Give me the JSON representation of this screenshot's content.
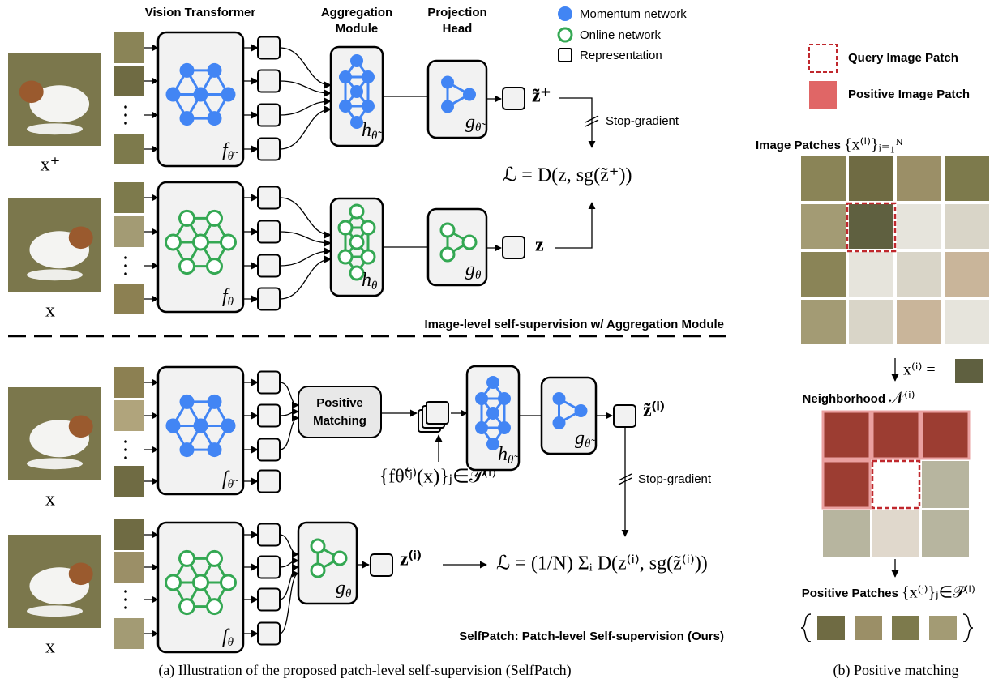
{
  "legend": {
    "momentum": "Momentum network",
    "online": "Online network",
    "representation": "Representation"
  },
  "modules": {
    "encoder": "Vision Transformer",
    "aggregation": [
      "Aggregation",
      "Module"
    ],
    "projection": [
      "Projection",
      "Head"
    ]
  },
  "rows": [
    {
      "input": "x⁺",
      "encoder": {
        "base": "f",
        "sub": "θ̃"
      },
      "aggregator": {
        "base": "h",
        "sub": "θ̃"
      },
      "head": {
        "base": "g",
        "sub": "θ̃"
      },
      "output": "z̃⁺"
    },
    {
      "input": "x",
      "encoder": {
        "base": "f",
        "sub": "θ"
      },
      "aggregator": {
        "base": "h",
        "sub": "θ"
      },
      "head": {
        "base": "g",
        "sub": "θ"
      },
      "output": "z"
    },
    {
      "input": "x",
      "encoder": {
        "base": "f",
        "sub": "θ̃"
      },
      "matching": [
        "Positive",
        "Matching"
      ],
      "features": "{fθ̃⁽ʲ⁾(x)}ⱼ∈𝒫⁽ⁱ⁾",
      "aggregator": {
        "base": "h",
        "sub": "θ̃"
      },
      "head": {
        "base": "g",
        "sub": "θ̃"
      },
      "output": "z̃⁽ⁱ⁾"
    },
    {
      "input": "x",
      "encoder": {
        "base": "f",
        "sub": "θ"
      },
      "head": {
        "base": "g",
        "sub": "θ"
      },
      "output": "z⁽ⁱ⁾"
    }
  ],
  "stop_gradient": [
    "Stop-gradient",
    "Stop-gradient"
  ],
  "image_level": {
    "loss": "ℒ = D(z, sg(z̃⁺))",
    "title": "Image-level self-supervision w/ Aggregation Module"
  },
  "patch_level": {
    "loss": "ℒ = (1/N) Σᵢ D(z⁽ⁱ⁾, sg(z̃⁽ⁱ⁾))",
    "title": "SelfPatch: Patch-level Self-supervision (Ours)"
  },
  "positive_matching": {
    "legend": {
      "query": "Query Image Patch",
      "positive": "Positive Image Patch"
    },
    "patches": {
      "label": "Image Patches",
      "set": "{x⁽ⁱ⁾}ᵢ₌₁ᴺ"
    },
    "query": "x⁽ⁱ⁾ =",
    "neighborhood": {
      "label": "Neighborhood",
      "set": "𝒩⁽ⁱ⁾"
    },
    "positives": {
      "label": "Positive Patches",
      "set": "{x⁽ʲ⁾}ⱼ∈𝒫⁽ⁱ⁾"
    }
  },
  "captions": [
    "(a) Illustration of the proposed patch-level self-supervision (SelfPatch)",
    "(b) Positive matching"
  ]
}
